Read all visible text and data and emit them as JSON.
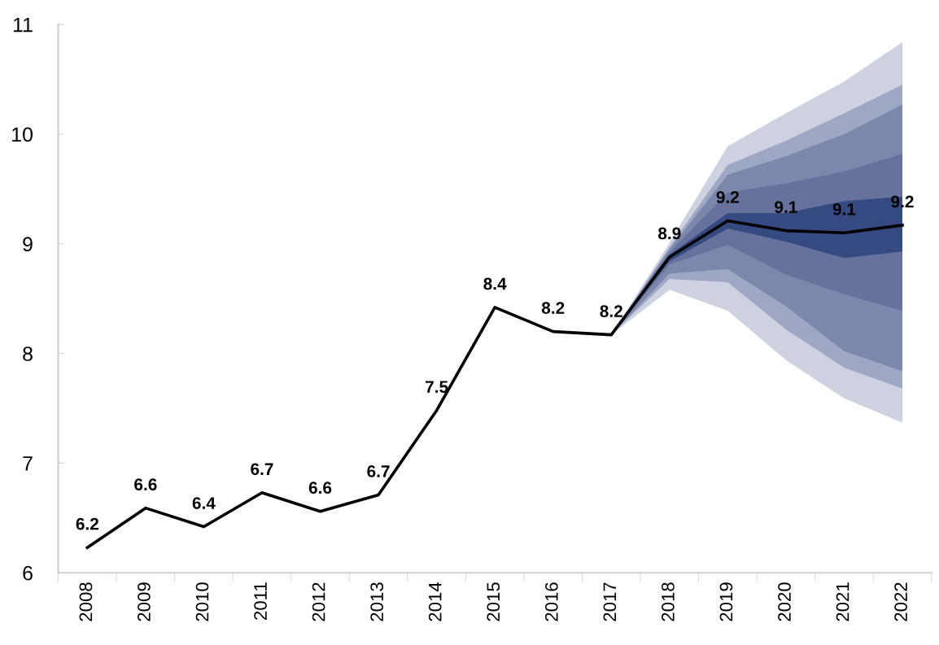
{
  "chart_data": {
    "type": "line",
    "categories": [
      "2008",
      "2009",
      "2010",
      "2011",
      "2012",
      "2013",
      "2014",
      "2015",
      "2016",
      "2017",
      "2018",
      "2019",
      "2020",
      "2021",
      "2022"
    ],
    "ylim": [
      6,
      11
    ],
    "yticks": [
      6,
      7,
      8,
      9,
      10,
      11
    ],
    "grid": false,
    "marker": "none",
    "line_style": "solid",
    "series": [
      {
        "type": "area",
        "color": "#cdd1e0",
        "values": [
          null,
          null,
          null,
          null,
          null,
          null,
          null,
          null,
          null,
          null,
          null,
          null,
          null,
          null,
          null
        ],
        "lower": [
          null,
          null,
          null,
          null,
          null,
          null,
          null,
          null,
          null,
          8.17,
          8.58,
          8.39,
          7.94,
          7.59,
          7.37
        ],
        "upper": [
          null,
          null,
          null,
          null,
          null,
          null,
          null,
          null,
          null,
          8.17,
          9.01,
          9.89,
          10.19,
          10.48,
          10.84
        ]
      },
      {
        "type": "area",
        "color": "#9ea7c4",
        "values": [
          null,
          null,
          null,
          null,
          null,
          null,
          null,
          null,
          null,
          null,
          null,
          null,
          null,
          null,
          null
        ],
        "lower": [
          null,
          null,
          null,
          null,
          null,
          null,
          null,
          null,
          null,
          8.17,
          8.68,
          8.65,
          8.22,
          7.87,
          7.68
        ],
        "upper": [
          null,
          null,
          null,
          null,
          null,
          null,
          null,
          null,
          null,
          8.17,
          8.97,
          9.72,
          9.94,
          10.19,
          10.45
        ]
      },
      {
        "type": "area",
        "color": "#7c88ab",
        "values": [
          null,
          null,
          null,
          null,
          null,
          null,
          null,
          null,
          null,
          null,
          null,
          null,
          null,
          null,
          null
        ],
        "lower": [
          null,
          null,
          null,
          null,
          null,
          null,
          null,
          null,
          null,
          8.17,
          8.73,
          8.77,
          8.43,
          8.02,
          7.84
        ],
        "upper": [
          null,
          null,
          null,
          null,
          null,
          null,
          null,
          null,
          null,
          8.17,
          8.95,
          9.63,
          9.8,
          10.0,
          10.27
        ]
      },
      {
        "type": "area",
        "color": "#66729c",
        "values": [
          null,
          null,
          null,
          null,
          null,
          null,
          null,
          null,
          null,
          null,
          null,
          null,
          null,
          null,
          null
        ],
        "lower": [
          null,
          null,
          null,
          null,
          null,
          null,
          null,
          null,
          null,
          8.17,
          8.81,
          8.99,
          8.72,
          8.54,
          8.39
        ],
        "upper": [
          null,
          null,
          null,
          null,
          null,
          null,
          null,
          null,
          null,
          8.17,
          8.92,
          9.47,
          9.55,
          9.66,
          9.82
        ]
      },
      {
        "type": "area",
        "color": "#354a80",
        "values": [
          null,
          null,
          null,
          null,
          null,
          null,
          null,
          null,
          null,
          null,
          null,
          null,
          null,
          null,
          null
        ],
        "lower": [
          null,
          null,
          null,
          null,
          null,
          null,
          null,
          null,
          null,
          8.17,
          8.84,
          9.14,
          9.02,
          8.87,
          8.93
        ],
        "upper": [
          null,
          null,
          null,
          null,
          null,
          null,
          null,
          null,
          null,
          8.17,
          8.9,
          9.28,
          9.28,
          9.39,
          9.43
        ]
      },
      {
        "color": "#000000",
        "values": [
          6.23,
          6.59,
          6.42,
          6.73,
          6.56,
          6.71,
          7.48,
          8.42,
          8.2,
          8.17,
          8.88,
          9.21,
          9.12,
          9.1,
          9.17
        ],
        "value_labels": [
          "6.2",
          "6.6",
          "6.4",
          "6.7",
          "6.6",
          "6.7",
          "7.5",
          "8.4",
          "8.2",
          "8.2",
          "8.9",
          "9.2",
          "9.1",
          "9.1",
          "9.2"
        ]
      }
    ]
  }
}
